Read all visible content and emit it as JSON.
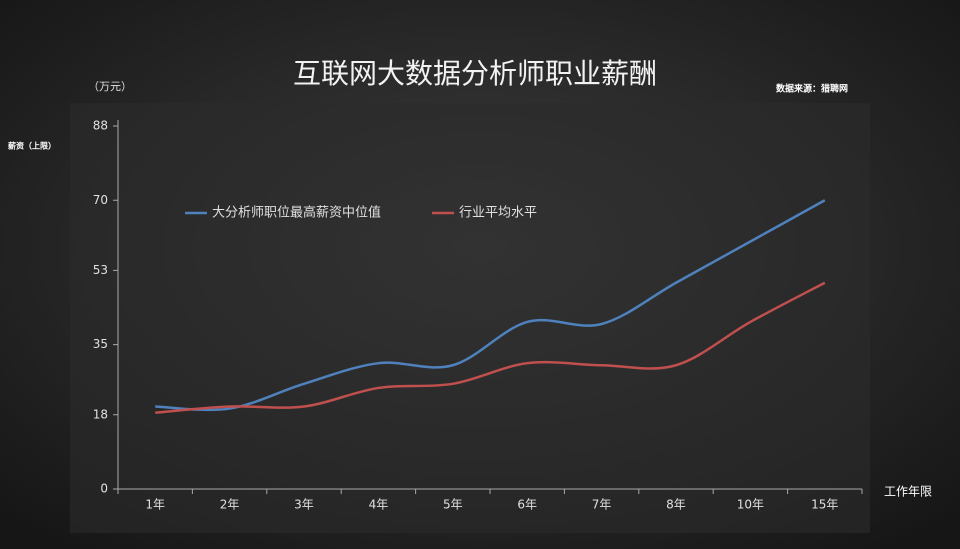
{
  "chart_data": {
    "type": "line",
    "title": "互联网大数据分析师职业薪酬",
    "source": "数据来源：猎聘网",
    "y_unit": "（万元）",
    "y_label": "薪资（上限）",
    "x_label": "工作年限",
    "categories": [
      "1年",
      "2年",
      "3年",
      "4年",
      "5年",
      "6年",
      "7年",
      "8年",
      "10年",
      "15年"
    ],
    "series": [
      {
        "name": "大分析师职位最高薪资中位值",
        "color": "#4f81bd",
        "values": [
          20,
          19.5,
          25.5,
          30.5,
          30,
          40.5,
          40,
          50,
          60,
          70
        ]
      },
      {
        "name": "行业平均水平",
        "color": "#c0504d",
        "values": [
          18.5,
          20,
          20,
          24.5,
          25.5,
          30.5,
          30,
          30,
          40.5,
          50
        ]
      }
    ],
    "ylim": [
      0,
      88
    ],
    "yticks": [
      0,
      18,
      35,
      53,
      70,
      88
    ]
  }
}
